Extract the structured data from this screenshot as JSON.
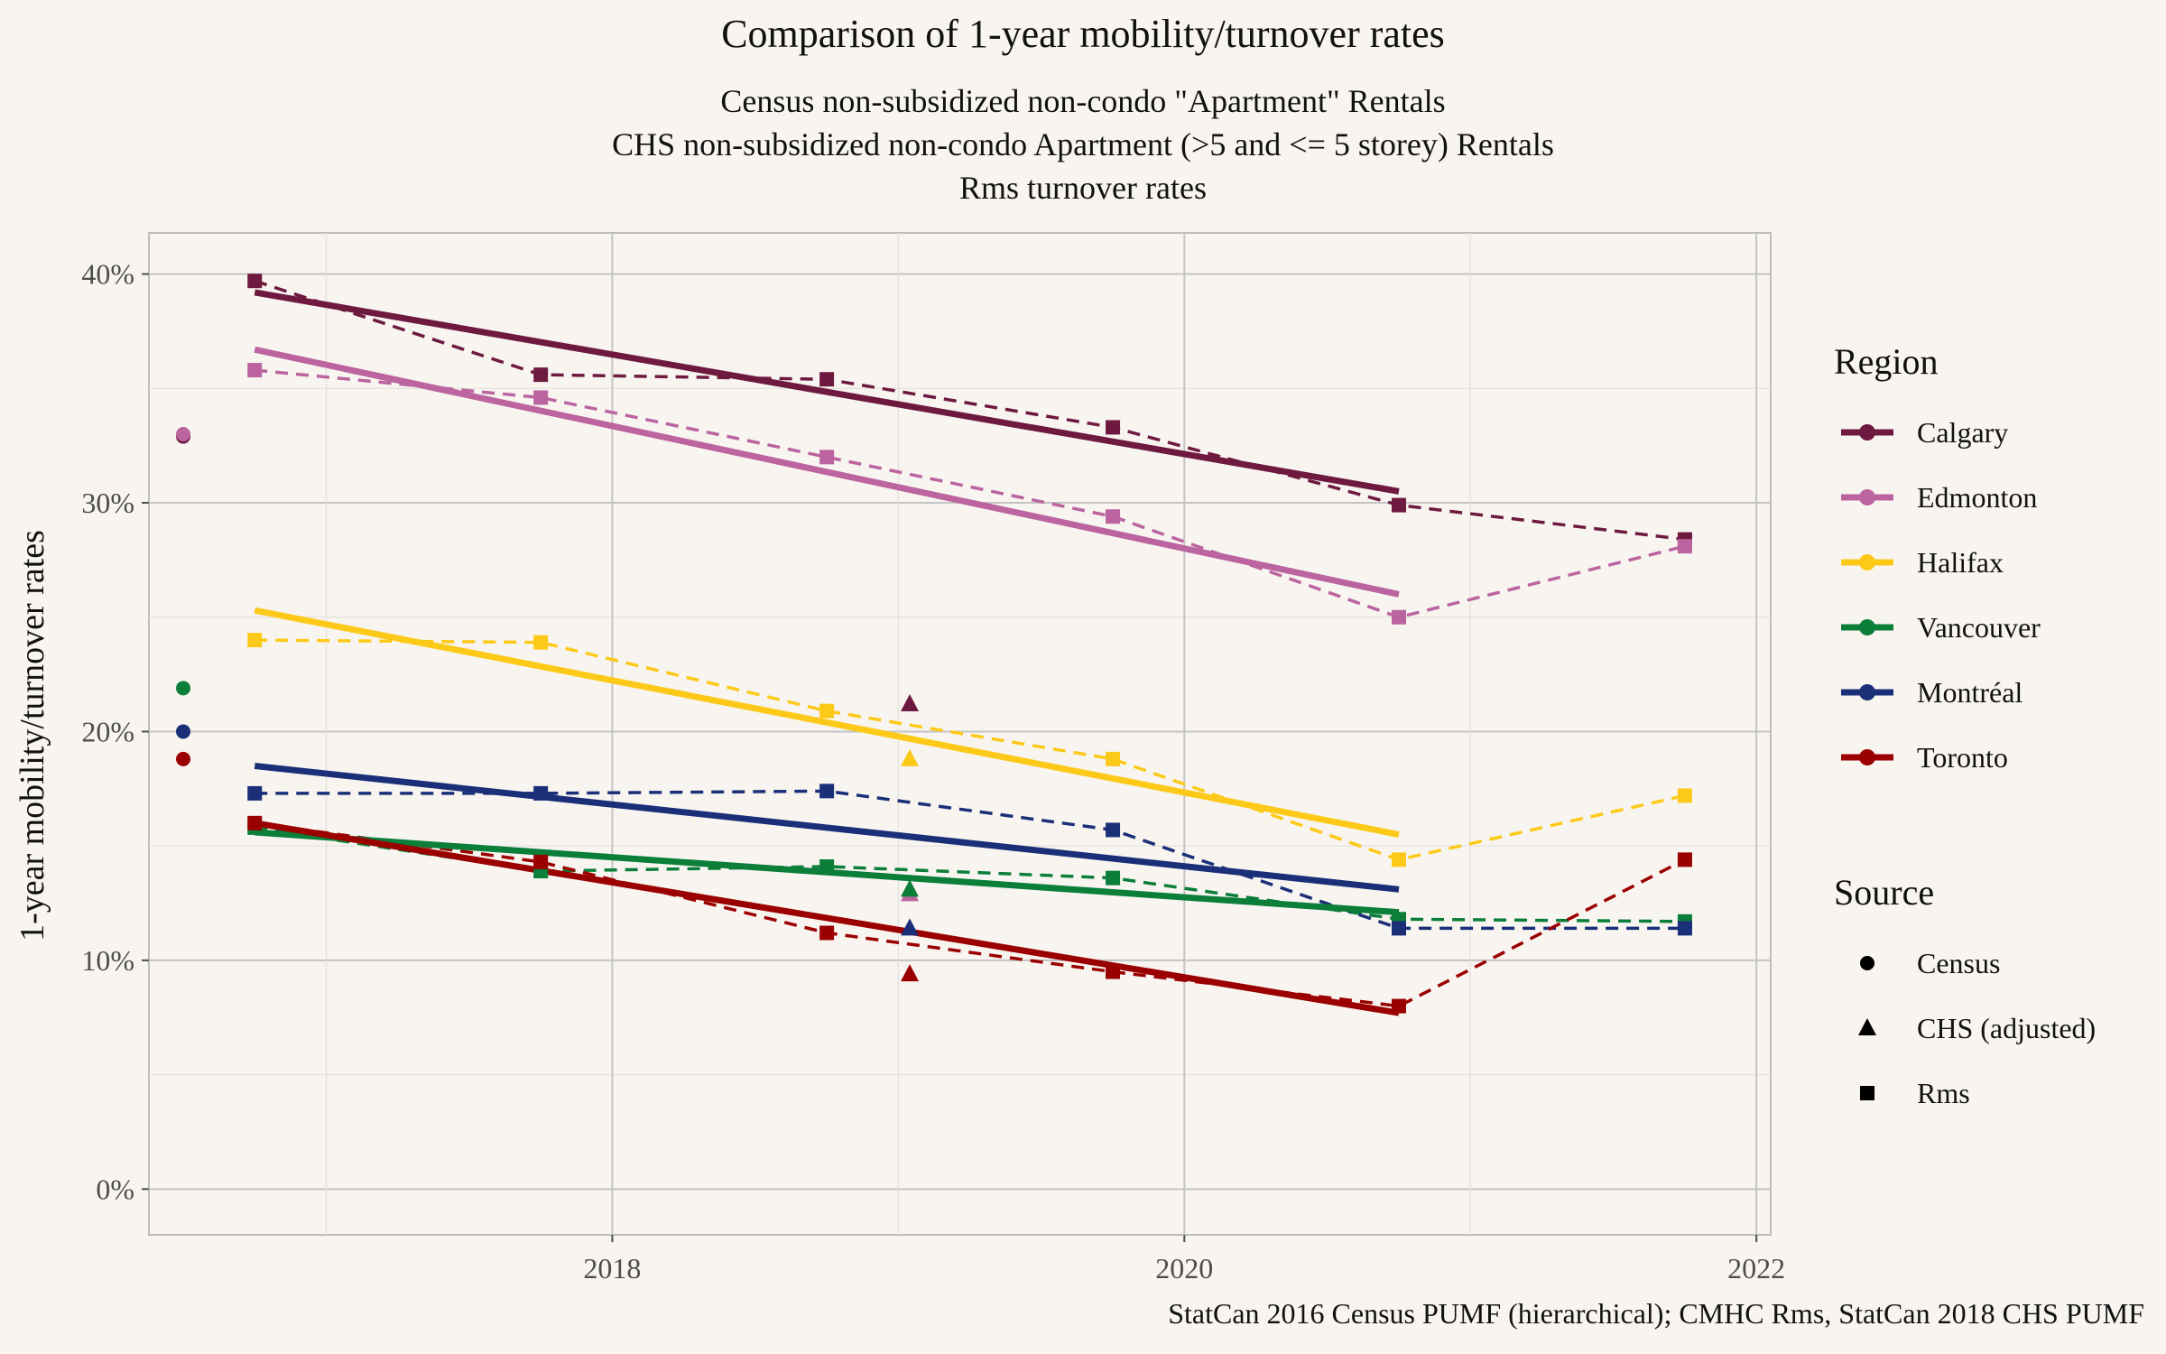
{
  "chart_data": {
    "type": "line",
    "title": "Comparison of 1-year mobility/turnover rates",
    "subtitle_lines": [
      "Census non-subsidized non-condo \"Apartment\" Rentals",
      "CHS non-subsidized non-condo Apartment (>5 and <= 5 storey) Rentals",
      "Rms turnover rates"
    ],
    "ylabel": "1-year mobility/turnover rates",
    "xlabel": "",
    "caption": "StatCan 2016 Census PUMF (hierarchical); CMHC Rms, StatCan 2018 CHS PUMF",
    "xlim": [
      2016.38,
      2022.05
    ],
    "ylim": [
      -0.02,
      0.418
    ],
    "x_ticks": [
      2018,
      2020,
      2022
    ],
    "y_ticks": [
      {
        "value": 0.0,
        "label": "0%"
      },
      {
        "value": 0.1,
        "label": "10%"
      },
      {
        "value": 0.2,
        "label": "20%"
      },
      {
        "value": 0.3,
        "label": "30%"
      },
      {
        "value": 0.4,
        "label": "40%"
      }
    ],
    "grid": true,
    "legend_position": "right",
    "legend": {
      "region_title": "Region",
      "source_title": "Source",
      "sources": [
        {
          "name": "Census",
          "shape": "circle"
        },
        {
          "name": "CHS (adjusted)",
          "shape": "triangle"
        },
        {
          "name": "Rms",
          "shape": "square"
        }
      ]
    },
    "series": [
      {
        "name": "Calgary",
        "color": "#6e1a40",
        "census": {
          "x": 2016.5,
          "y": 0.329
        },
        "chs": {
          "x": 2019.04,
          "y": 0.212
        },
        "rms": {
          "x": [
            2016.75,
            2017.75,
            2018.75,
            2019.75,
            2020.75,
            2021.75
          ],
          "y": [
            0.397,
            0.356,
            0.354,
            0.333,
            0.299,
            0.284
          ]
        },
        "trend": {
          "x": [
            2016.75,
            2020.75
          ],
          "y": [
            0.392,
            0.305
          ]
        }
      },
      {
        "name": "Edmonton",
        "color": "#bb649f",
        "census": {
          "x": 2016.5,
          "y": 0.33
        },
        "chs": {
          "x": 2019.04,
          "y": 0.129
        },
        "rms": {
          "x": [
            2016.75,
            2017.75,
            2018.75,
            2019.75,
            2020.75,
            2021.75
          ],
          "y": [
            0.358,
            0.346,
            0.32,
            0.294,
            0.25,
            0.281
          ]
        },
        "trend": {
          "x": [
            2016.75,
            2020.75
          ],
          "y": [
            0.367,
            0.26
          ]
        }
      },
      {
        "name": "Halifax",
        "color": "#fdc919",
        "census": null,
        "chs": {
          "x": 2019.04,
          "y": 0.188
        },
        "rms": {
          "x": [
            2016.75,
            2017.75,
            2018.75,
            2019.75,
            2020.75,
            2021.75
          ],
          "y": [
            0.24,
            0.239,
            0.209,
            0.188,
            0.144,
            0.172
          ]
        },
        "trend": {
          "x": [
            2016.75,
            2020.75
          ],
          "y": [
            0.253,
            0.155
          ]
        }
      },
      {
        "name": "Vancouver",
        "color": "#0b7e39",
        "census": {
          "x": 2016.5,
          "y": 0.219
        },
        "chs": {
          "x": 2019.04,
          "y": 0.131
        },
        "rms": {
          "x": [
            2016.75,
            2017.75,
            2018.75,
            2019.75,
            2020.75,
            2021.75
          ],
          "y": [
            0.158,
            0.139,
            0.141,
            0.136,
            0.118,
            0.117
          ]
        },
        "trend": {
          "x": [
            2016.75,
            2020.75
          ],
          "y": [
            0.156,
            0.121
          ]
        }
      },
      {
        "name": "Montréal",
        "color": "#1b2f78",
        "census": {
          "x": 2016.5,
          "y": 0.2
        },
        "chs": {
          "x": 2019.04,
          "y": 0.114
        },
        "rms": {
          "x": [
            2016.75,
            2017.75,
            2018.75,
            2019.75,
            2020.75,
            2021.75
          ],
          "y": [
            0.173,
            0.173,
            0.174,
            0.157,
            0.114,
            0.114
          ]
        },
        "trend": {
          "x": [
            2016.75,
            2020.75
          ],
          "y": [
            0.185,
            0.131
          ]
        }
      },
      {
        "name": "Toronto",
        "color": "#9b0000",
        "census": {
          "x": 2016.5,
          "y": 0.188
        },
        "chs": {
          "x": 2019.04,
          "y": 0.094
        },
        "rms": {
          "x": [
            2016.75,
            2017.75,
            2018.75,
            2019.75,
            2020.75,
            2021.75
          ],
          "y": [
            0.16,
            0.143,
            0.112,
            0.095,
            0.08,
            0.144
          ]
        },
        "trend": {
          "x": [
            2016.75,
            2020.75
          ],
          "y": [
            0.16,
            0.077
          ]
        }
      }
    ]
  }
}
